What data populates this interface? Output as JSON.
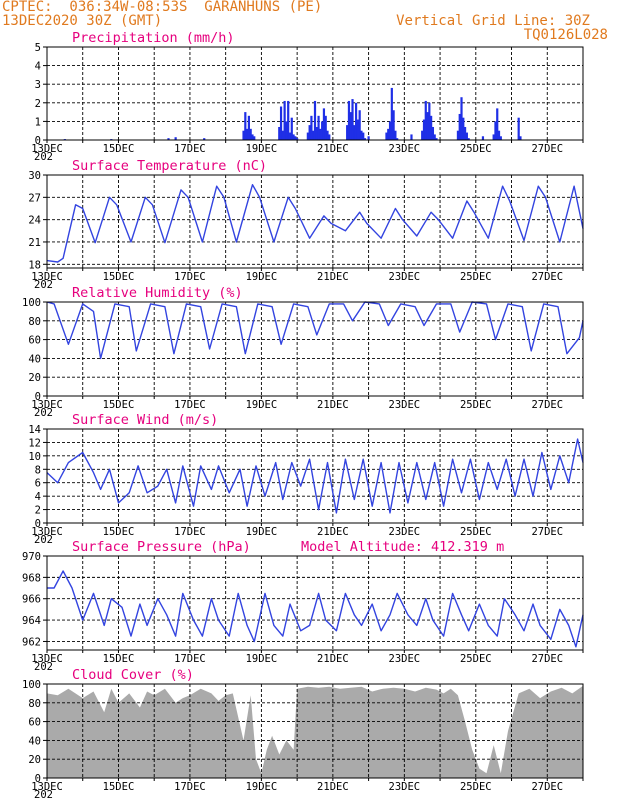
{
  "header": {
    "left_line1": "CPTEC:  036:34W-08:53S  GARANHUNS (PE)",
    "left_line2": "13DEC2020 30Z (GMT)",
    "right_line1": "Vertical Grid Line: 30Z",
    "right_line2": "TQ0126L028"
  },
  "x_axis": {
    "start_day": 13,
    "end_day": 28,
    "tick_labels": [
      "13DEC",
      "15DEC",
      "17DEC",
      "19DEC",
      "21DEC",
      "23DEC",
      "25DEC",
      "27DEC"
    ],
    "tick_days": [
      13,
      15,
      17,
      19,
      21,
      23,
      25,
      27
    ],
    "year_stub": "202"
  },
  "colors": {
    "line": "#3344e0",
    "bar": "#1f2fe6",
    "cloud": "#aaaaaa",
    "title": "#e6007e",
    "header": "#e07a1f"
  },
  "chart_data": [
    {
      "type": "bar",
      "title": "Precipitation (mm/h)",
      "ylim": [
        0,
        5
      ],
      "yticks": [
        0,
        1,
        2,
        3,
        4,
        5
      ],
      "grid": true,
      "x": [
        13.5,
        14.8,
        16.4,
        16.6,
        17.4,
        18.5,
        18.55,
        18.6,
        18.65,
        18.7,
        18.75,
        18.8,
        19.5,
        19.55,
        19.6,
        19.65,
        19.7,
        19.75,
        19.8,
        19.85,
        19.9,
        19.95,
        20.0,
        20.3,
        20.35,
        20.4,
        20.45,
        20.5,
        20.55,
        20.6,
        20.65,
        20.7,
        20.75,
        20.8,
        20.85,
        20.9,
        21.4,
        21.45,
        21.5,
        21.55,
        21.6,
        21.65,
        21.7,
        21.75,
        21.8,
        21.85,
        21.9,
        22.0,
        22.5,
        22.55,
        22.6,
        22.65,
        22.7,
        22.75,
        22.8,
        23.2,
        23.5,
        23.55,
        23.6,
        23.65,
        23.7,
        23.75,
        23.8,
        23.85,
        23.9,
        24.5,
        24.55,
        24.6,
        24.65,
        24.7,
        24.75,
        24.8,
        25.2,
        25.5,
        25.55,
        25.6,
        25.65,
        25.7,
        26.2,
        26.25
      ],
      "values": [
        0.05,
        0.05,
        0.1,
        0.15,
        0.1,
        0.5,
        1.5,
        0.6,
        1.3,
        0.6,
        0.3,
        0.2,
        0.7,
        1.8,
        0.5,
        2.1,
        1.0,
        2.1,
        0.4,
        1.2,
        0.3,
        0.2,
        0.1,
        0.4,
        0.8,
        1.3,
        0.5,
        2.1,
        0.7,
        1.3,
        0.6,
        1.0,
        1.7,
        1.3,
        0.5,
        0.3,
        0.8,
        2.1,
        1.5,
        2.2,
        0.8,
        2.0,
        1.1,
        1.6,
        0.5,
        0.4,
        0.1,
        0.2,
        0.4,
        0.6,
        1.0,
        2.8,
        1.6,
        0.5,
        0.1,
        0.3,
        0.5,
        1.1,
        2.1,
        1.5,
        2.0,
        1.3,
        0.7,
        0.3,
        0.1,
        0.5,
        1.4,
        2.3,
        1.2,
        0.7,
        0.4,
        0.1,
        0.2,
        0.3,
        1.0,
        1.7,
        0.5,
        0.2,
        1.2,
        0.2
      ]
    },
    {
      "type": "line",
      "title": "Surface Temperature (nC)",
      "ylim": [
        17.5,
        30
      ],
      "yticks": [
        18,
        21,
        24,
        27,
        30
      ],
      "grid": true,
      "x": [
        13.0,
        13.3,
        13.45,
        13.8,
        14.0,
        14.35,
        14.75,
        14.95,
        15.35,
        15.75,
        15.95,
        16.3,
        16.75,
        16.95,
        17.35,
        17.75,
        17.95,
        18.3,
        18.75,
        18.95,
        19.35,
        19.75,
        19.95,
        20.35,
        20.75,
        20.95,
        21.35,
        21.75,
        21.95,
        22.35,
        22.75,
        22.95,
        23.35,
        23.75,
        23.95,
        24.35,
        24.75,
        24.95,
        25.35,
        25.75,
        25.95,
        26.35,
        26.75,
        26.95,
        27.35,
        27.75,
        28.0
      ],
      "values": [
        18.5,
        18.3,
        18.8,
        26.0,
        25.5,
        20.9,
        27.0,
        26.0,
        21.0,
        27.0,
        26.0,
        20.9,
        28.0,
        27.0,
        21.0,
        28.5,
        27.0,
        21.0,
        28.7,
        27.0,
        21.0,
        27.0,
        25.5,
        21.5,
        24.5,
        23.5,
        22.5,
        25.0,
        23.5,
        21.5,
        25.5,
        24.0,
        21.8,
        25.0,
        24.0,
        21.5,
        26.5,
        25.0,
        21.5,
        28.5,
        26.5,
        21.2,
        28.5,
        27.0,
        21.0,
        28.5,
        22.8
      ]
    },
    {
      "type": "line",
      "title": "Relative Humidity (%)",
      "ylim": [
        0,
        100
      ],
      "yticks": [
        0,
        20,
        40,
        60,
        80,
        100
      ],
      "grid": true,
      "x": [
        13.0,
        13.2,
        13.6,
        14.0,
        14.3,
        14.5,
        14.9,
        15.3,
        15.5,
        15.9,
        16.3,
        16.55,
        16.9,
        17.3,
        17.55,
        17.9,
        18.3,
        18.55,
        18.9,
        19.3,
        19.55,
        19.9,
        20.3,
        20.55,
        20.9,
        21.3,
        21.55,
        21.9,
        22.3,
        22.55,
        22.9,
        23.3,
        23.55,
        23.9,
        24.3,
        24.55,
        24.9,
        25.3,
        25.55,
        25.9,
        26.3,
        26.55,
        26.9,
        27.3,
        27.55,
        27.9,
        28.0
      ],
      "values": [
        100,
        98,
        55,
        98,
        90,
        40,
        98,
        95,
        48,
        98,
        95,
        45,
        98,
        95,
        50,
        98,
        95,
        45,
        98,
        95,
        55,
        98,
        95,
        65,
        98,
        98,
        80,
        100,
        98,
        75,
        98,
        95,
        75,
        98,
        98,
        68,
        100,
        98,
        60,
        98,
        95,
        48,
        98,
        95,
        45,
        62,
        80
      ]
    },
    {
      "type": "line",
      "title": "Surface Wind (m/s)",
      "ylim": [
        0,
        14
      ],
      "yticks": [
        0,
        2,
        4,
        6,
        8,
        10,
        12,
        14
      ],
      "grid": true,
      "x": [
        13.0,
        13.3,
        13.6,
        14.0,
        14.3,
        14.5,
        14.75,
        15.0,
        15.3,
        15.55,
        15.8,
        16.1,
        16.35,
        16.6,
        16.8,
        17.1,
        17.3,
        17.6,
        17.8,
        18.1,
        18.4,
        18.6,
        18.85,
        19.1,
        19.4,
        19.6,
        19.85,
        20.1,
        20.35,
        20.6,
        20.85,
        21.1,
        21.35,
        21.6,
        21.85,
        22.1,
        22.35,
        22.6,
        22.85,
        23.1,
        23.35,
        23.6,
        23.85,
        24.1,
        24.35,
        24.6,
        24.85,
        25.1,
        25.35,
        25.6,
        25.85,
        26.1,
        26.35,
        26.6,
        26.85,
        27.1,
        27.35,
        27.6,
        27.85,
        28.0
      ],
      "values": [
        7.5,
        6.0,
        9.0,
        10.5,
        7.5,
        5.0,
        8.0,
        3.0,
        4.5,
        8.5,
        4.5,
        5.5,
        8.0,
        3.0,
        8.5,
        2.5,
        8.5,
        5.0,
        8.5,
        4.5,
        8.0,
        2.5,
        8.5,
        4.0,
        9.0,
        3.5,
        9.0,
        5.5,
        9.5,
        2.0,
        9.0,
        1.5,
        9.5,
        3.5,
        9.5,
        2.5,
        9.0,
        1.5,
        9.0,
        3.0,
        9.0,
        3.5,
        9.0,
        2.5,
        9.5,
        4.5,
        9.5,
        3.5,
        9.0,
        5.0,
        9.5,
        4.0,
        9.5,
        4.0,
        10.5,
        5.0,
        10.0,
        6.0,
        12.5,
        9.0
      ]
    },
    {
      "type": "line",
      "title": "Surface Pressure (hPa)",
      "annotation": "Model Altitude: 412.319 m",
      "ylim": [
        961.2,
        970
      ],
      "yticks": [
        962,
        964,
        966,
        968,
        970
      ],
      "grid": true,
      "x": [
        13.0,
        13.2,
        13.45,
        13.7,
        14.0,
        14.3,
        14.6,
        14.8,
        15.1,
        15.35,
        15.6,
        15.8,
        16.1,
        16.35,
        16.6,
        16.8,
        17.1,
        17.35,
        17.6,
        17.8,
        18.1,
        18.35,
        18.6,
        18.8,
        19.1,
        19.35,
        19.6,
        19.8,
        20.1,
        20.35,
        20.6,
        20.8,
        21.1,
        21.35,
        21.6,
        21.8,
        22.1,
        22.35,
        22.6,
        22.8,
        23.1,
        23.35,
        23.6,
        23.8,
        24.1,
        24.35,
        24.6,
        24.8,
        25.1,
        25.35,
        25.6,
        25.8,
        26.1,
        26.35,
        26.6,
        26.8,
        27.1,
        27.35,
        27.6,
        27.8,
        28.0
      ],
      "values": [
        967,
        967,
        968.6,
        967,
        964,
        966.5,
        963.5,
        966,
        965.2,
        962.5,
        965.5,
        963.5,
        966,
        964.5,
        962.5,
        966.5,
        964,
        962.5,
        966,
        964,
        962.5,
        966.5,
        963.5,
        962,
        966.5,
        963.5,
        962.5,
        965.5,
        963,
        963.5,
        966.5,
        964,
        963,
        966.5,
        964.5,
        963.5,
        965.5,
        963,
        964.5,
        966.5,
        964.5,
        963.5,
        966,
        964,
        962.5,
        966.5,
        964.5,
        963,
        965.5,
        963.5,
        962.5,
        966,
        964.5,
        963,
        965.5,
        963.5,
        962.2,
        965,
        963.5,
        961.5,
        964.5
      ]
    },
    {
      "type": "area",
      "title": "Cloud Cover (%)",
      "ylim": [
        0,
        100
      ],
      "yticks": [
        0,
        20,
        40,
        60,
        80,
        100
      ],
      "grid": true,
      "x": [
        13.0,
        13.3,
        13.6,
        14.0,
        14.3,
        14.6,
        14.8,
        15.0,
        15.3,
        15.6,
        15.8,
        16.0,
        16.3,
        16.6,
        16.8,
        17.0,
        17.3,
        17.6,
        17.8,
        18.0,
        18.2,
        18.5,
        18.7,
        18.85,
        19.0,
        19.15,
        19.3,
        19.5,
        19.7,
        19.9,
        20.0,
        20.3,
        20.6,
        20.9,
        21.2,
        21.5,
        21.8,
        22.1,
        22.4,
        22.7,
        23.0,
        23.3,
        23.6,
        23.9,
        24.1,
        24.3,
        24.5,
        24.7,
        24.9,
        25.1,
        25.3,
        25.5,
        25.7,
        25.9,
        26.2,
        26.5,
        26.8,
        27.1,
        27.4,
        27.7,
        28.0
      ],
      "values": [
        90,
        88,
        95,
        85,
        92,
        70,
        95,
        80,
        90,
        75,
        92,
        88,
        95,
        80,
        85,
        88,
        95,
        90,
        82,
        88,
        90,
        40,
        88,
        20,
        5,
        30,
        45,
        25,
        40,
        30,
        95,
        97,
        96,
        97,
        95,
        96,
        97,
        92,
        95,
        96,
        95,
        92,
        96,
        94,
        90,
        95,
        88,
        60,
        30,
        10,
        5,
        35,
        5,
        50,
        90,
        95,
        85,
        92,
        96,
        90,
        98
      ]
    }
  ]
}
